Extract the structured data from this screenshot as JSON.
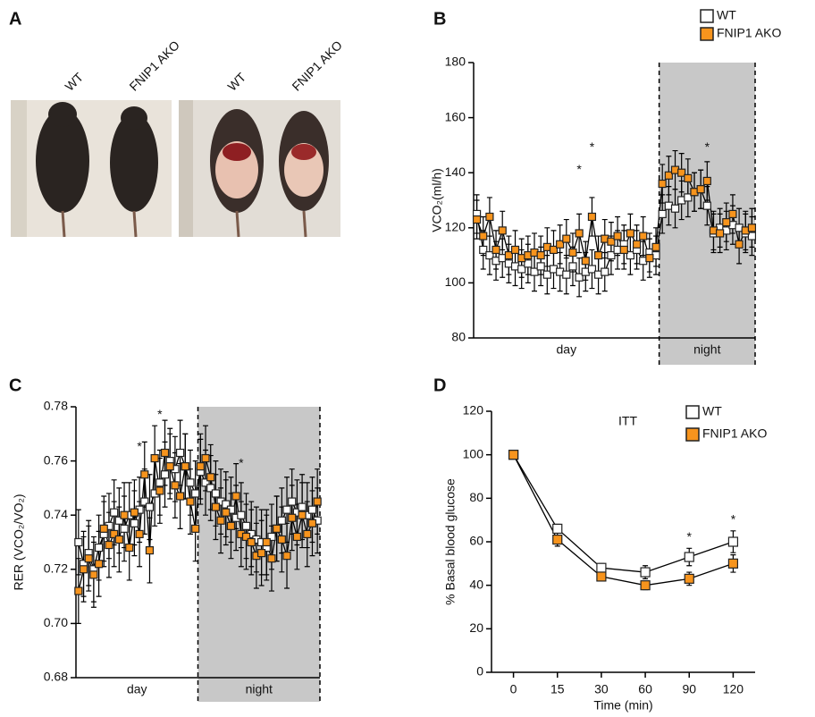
{
  "panel_A": {
    "letter": "A",
    "photos": [
      {
        "labels": [
          "WT",
          "FNIP1 AKO"
        ]
      },
      {
        "labels": [
          "WT",
          "FNIP1 AKO"
        ]
      }
    ]
  },
  "chart_data": [
    {
      "type": "line",
      "panel": "B",
      "ylabel": "VCO₂(ml/h)",
      "categories": [
        null,
        null,
        null,
        null,
        null,
        null,
        null,
        null,
        null,
        null,
        null,
        null,
        null,
        null,
        null,
        null,
        null,
        null,
        null,
        null,
        null,
        null,
        null,
        null,
        null,
        null,
        null,
        null,
        null,
        null,
        null,
        null,
        null,
        null,
        null,
        null,
        null,
        null,
        null,
        null,
        null,
        null,
        null,
        null
      ],
      "series": [
        {
          "name": "WT",
          "color": "#ffffff",
          "error": 7,
          "values": [
            125,
            112,
            110,
            108,
            109,
            107,
            106,
            105,
            107,
            104,
            106,
            103,
            105,
            104,
            103,
            106,
            102,
            104,
            105,
            103,
            104,
            110,
            112,
            114,
            110,
            112,
            108,
            111,
            110,
            125,
            128,
            127,
            130,
            131,
            133,
            134,
            128,
            118,
            120,
            119,
            121,
            120,
            118,
            117
          ]
        },
        {
          "name": "FNIP1 AKO",
          "color": "#f7941d",
          "error": 7,
          "values": [
            123,
            117,
            124,
            112,
            119,
            110,
            112,
            109,
            110,
            111,
            110,
            113,
            112,
            114,
            116,
            111,
            118,
            108,
            124,
            110,
            116,
            115,
            117,
            112,
            118,
            114,
            117,
            109,
            113,
            136,
            139,
            141,
            140,
            138,
            133,
            134,
            137,
            119,
            118,
            122,
            125,
            114,
            119,
            120
          ]
        }
      ],
      "ylim": [
        80,
        180
      ],
      "yticks": [
        80,
        100,
        120,
        140,
        160,
        180
      ],
      "periods": [
        {
          "label": "day",
          "start": 0,
          "end": 28,
          "shade": false
        },
        {
          "label": "night",
          "start": 29,
          "end": 43,
          "shade": true
        }
      ],
      "annotations": [
        {
          "text": "*",
          "index": 16,
          "y": 141
        },
        {
          "text": "*",
          "index": 18,
          "y": 149
        },
        {
          "text": "*",
          "index": 36,
          "y": 149
        }
      ],
      "legend": "top-right"
    },
    {
      "type": "line",
      "panel": "C",
      "ylabel": "RER (VCO₂/VO₂)",
      "categories": [
        null,
        null,
        null,
        null,
        null,
        null,
        null,
        null,
        null,
        null,
        null,
        null,
        null,
        null,
        null,
        null,
        null,
        null,
        null,
        null,
        null,
        null,
        null,
        null,
        null,
        null,
        null,
        null,
        null,
        null,
        null,
        null,
        null,
        null,
        null,
        null,
        null,
        null,
        null,
        null,
        null,
        null,
        null,
        null,
        null,
        null,
        null,
        null
      ],
      "series": [
        {
          "name": "WT",
          "color": "#ffffff",
          "error": 0.012,
          "values": [
            0.73,
            0.722,
            0.726,
            0.72,
            0.728,
            0.733,
            0.736,
            0.741,
            0.738,
            0.735,
            0.74,
            0.737,
            0.742,
            0.745,
            0.743,
            0.748,
            0.752,
            0.755,
            0.76,
            0.757,
            0.763,
            0.758,
            0.752,
            0.748,
            0.756,
            0.752,
            0.75,
            0.748,
            0.745,
            0.744,
            0.742,
            0.739,
            0.74,
            0.736,
            0.733,
            0.731,
            0.73,
            0.728,
            0.732,
            0.735,
            0.738,
            0.742,
            0.745,
            0.741,
            0.743,
            0.74,
            0.742,
            0.738
          ]
        },
        {
          "name": "FNIP1 AKO",
          "color": "#f7941d",
          "error": 0.012,
          "values": [
            0.712,
            0.72,
            0.724,
            0.718,
            0.722,
            0.735,
            0.729,
            0.733,
            0.731,
            0.74,
            0.728,
            0.741,
            0.733,
            0.755,
            0.727,
            0.761,
            0.749,
            0.763,
            0.758,
            0.751,
            0.747,
            0.758,
            0.745,
            0.735,
            0.758,
            0.761,
            0.754,
            0.743,
            0.738,
            0.741,
            0.736,
            0.747,
            0.733,
            0.732,
            0.73,
            0.725,
            0.726,
            0.73,
            0.724,
            0.735,
            0.731,
            0.725,
            0.739,
            0.732,
            0.74,
            0.733,
            0.737,
            0.745
          ]
        }
      ],
      "ylim": [
        0.68,
        0.78
      ],
      "yticks": [
        0.68,
        {
          "value": 0.7,
          "label": "0.70"
        },
        0.72,
        0.74,
        0.76,
        0.78
      ],
      "periods": [
        {
          "label": "day",
          "start": 0,
          "end": 23,
          "shade": false
        },
        {
          "label": "night",
          "start": 24,
          "end": 47,
          "shade": true
        }
      ],
      "annotations": [
        {
          "text": "*",
          "index": 12,
          "y": 0.765
        },
        {
          "text": "*",
          "index": 16,
          "y": 0.777
        },
        {
          "text": "*",
          "index": 32,
          "y": 0.759
        }
      ]
    },
    {
      "type": "line",
      "panel": "D",
      "title": "ITT",
      "ylabel": "% Basal blood glucose",
      "xlabel": "Time (min)",
      "categories": [
        "0",
        "15",
        "30",
        "60",
        "90",
        "120"
      ],
      "series": [
        {
          "name": "WT",
          "color": "#ffffff",
          "values": [
            100,
            66,
            48,
            46,
            53,
            60
          ],
          "errors": [
            1,
            2,
            2,
            3,
            4,
            5
          ]
        },
        {
          "name": "FNIP1 AKO",
          "color": "#f7941d",
          "values": [
            100,
            61,
            44,
            40,
            43,
            50
          ],
          "errors": [
            1,
            3,
            1,
            2,
            3,
            4
          ]
        }
      ],
      "ylim": [
        0,
        120
      ],
      "yticks": [
        0,
        20,
        40,
        60,
        80,
        100,
        120
      ],
      "annotations": [
        {
          "text": "*",
          "index": 4,
          "y": 62
        },
        {
          "text": "*",
          "index": 5,
          "y": 70
        }
      ],
      "legend": "top-right"
    }
  ]
}
